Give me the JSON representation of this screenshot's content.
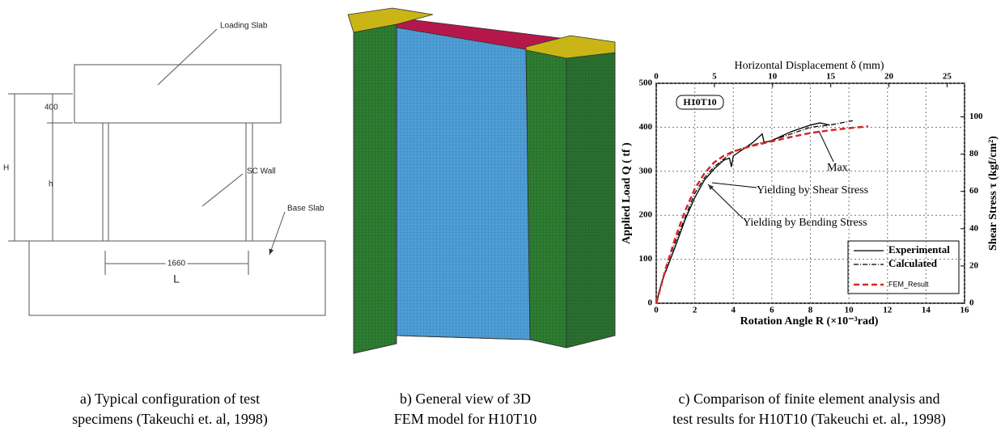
{
  "panel_a": {
    "labels": {
      "loading_slab": "Loading Slab",
      "sc_wall": "SC Wall",
      "base_slab": "Base Slab",
      "dim_400": "400",
      "H": "H",
      "h": "h",
      "dim_1660": "1660",
      "L": "L"
    },
    "caption": [
      "a) Typical configuration of test",
      "specimens (Takeuchi et. al, 1998)"
    ]
  },
  "panel_b": {
    "caption": [
      "b) General view of 3D",
      "FEM model for H10T10"
    ]
  },
  "panel_c": {
    "caption": [
      "c) Comparison of finite element analysis and",
      "test results for H10T10 (Takeuchi et. al., 1998)"
    ]
  },
  "chart_data": {
    "type": "line",
    "x_label": "Rotation Angle  R (×10⁻³rad)",
    "y_label": "Applied Load  Q  ( tf )",
    "x2_label": "Horizontal Displacement  δ  (mm)",
    "y2_label": "Shear Stress  τ  (kgf/cm²)",
    "box_label": "H10T10",
    "annotations": [
      "Max.",
      "Yielding by Shear Stress",
      "Yielding by Bending Stress"
    ],
    "xlim": [
      0,
      16
    ],
    "xticks": [
      0,
      2,
      4,
      6,
      8,
      10,
      12,
      14,
      16
    ],
    "ylim": [
      0,
      500
    ],
    "yticks": [
      0,
      100,
      200,
      300,
      400,
      500
    ],
    "x2lim": [
      0,
      26.5
    ],
    "x2ticks": [
      0,
      5,
      10,
      15,
      20,
      25
    ],
    "y2lim": [
      0,
      118
    ],
    "y2ticks": [
      0,
      20,
      40,
      60,
      80,
      100
    ],
    "grid": true,
    "series": [
      {
        "name": "Experimental",
        "color": "#000000",
        "style": "solid",
        "x": [
          0,
          0.3,
          1,
          1.5,
          2,
          2.5,
          3,
          3.5,
          3.8,
          3.9,
          4,
          4.5,
          5,
          5.5,
          5.6,
          6,
          7,
          8,
          8.5,
          9
        ],
        "values": [
          0,
          50,
          130,
          190,
          240,
          280,
          305,
          325,
          330,
          310,
          335,
          350,
          365,
          385,
          365,
          370,
          390,
          405,
          410,
          405
        ]
      },
      {
        "name": "Calculated",
        "color": "#000000",
        "style": "dashdot",
        "x": [
          0,
          0.5,
          1,
          2,
          2.5,
          3,
          4,
          5,
          6,
          7,
          8,
          9,
          10.2
        ],
        "values": [
          0,
          80,
          140,
          250,
          285,
          310,
          345,
          360,
          370,
          385,
          400,
          405,
          415
        ]
      },
      {
        "name": "FEM_Result",
        "color": "#d62728",
        "style": "dashed",
        "x": [
          0,
          0.5,
          1,
          1.5,
          2,
          2.5,
          3,
          3.5,
          4,
          5,
          6,
          7,
          8,
          9,
          10,
          11
        ],
        "values": [
          0,
          80,
          150,
          210,
          260,
          295,
          320,
          335,
          345,
          358,
          368,
          378,
          387,
          393,
          398,
          402
        ]
      }
    ]
  }
}
